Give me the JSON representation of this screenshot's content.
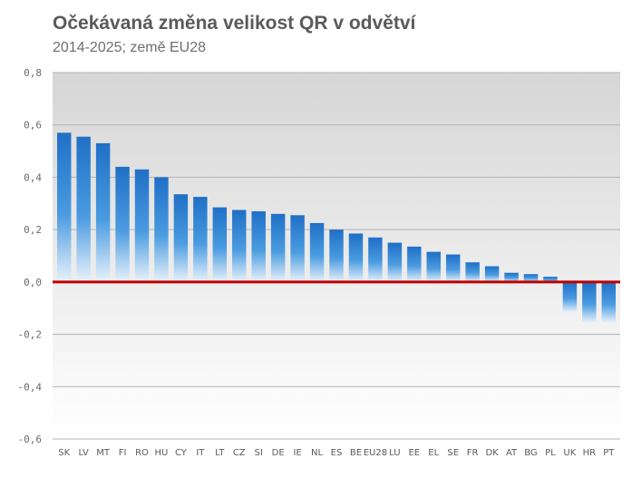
{
  "chart_data": {
    "type": "bar",
    "title": "Očekávaná změna velikost QR v odvětví",
    "subtitle": "2014-2025; země EU28",
    "xlabel": "",
    "ylabel": "",
    "ylim": [
      -0.6,
      0.8
    ],
    "yticks": [
      0.8,
      0.6,
      0.4,
      0.2,
      0.0,
      -0.2,
      -0.4,
      -0.6
    ],
    "ytick_labels": [
      "0,8",
      "0,6",
      "0,4",
      "0,2",
      "0,0",
      "-0,2",
      "-0,4",
      "-0,6"
    ],
    "grid": true,
    "legend": "none",
    "categories": [
      "SK",
      "LV",
      "MT",
      "FI",
      "RO",
      "HU",
      "CY",
      "IT",
      "LT",
      "CZ",
      "SI",
      "DE",
      "IE",
      "NL",
      "ES",
      "BE",
      "EU28",
      "LU",
      "EE",
      "EL",
      "SE",
      "FR",
      "DK",
      "AT",
      "BG",
      "PL",
      "UK",
      "HR",
      "PT"
    ],
    "values": [
      0.57,
      0.555,
      0.53,
      0.44,
      0.43,
      0.4,
      0.335,
      0.325,
      0.285,
      0.275,
      0.27,
      0.26,
      0.255,
      0.225,
      0.2,
      0.185,
      0.17,
      0.15,
      0.135,
      0.115,
      0.105,
      0.075,
      0.06,
      0.035,
      0.03,
      0.02,
      -0.115,
      -0.155,
      -0.155
    ],
    "colors": {
      "bar": "#2a7fd4",
      "bar_fade": "#e9f3fb",
      "zero_line": "#c00000",
      "plot_bg_top": "#d9d9d9",
      "plot_bg_bottom": "#ffffff",
      "grid": "#b5b5b5"
    }
  }
}
